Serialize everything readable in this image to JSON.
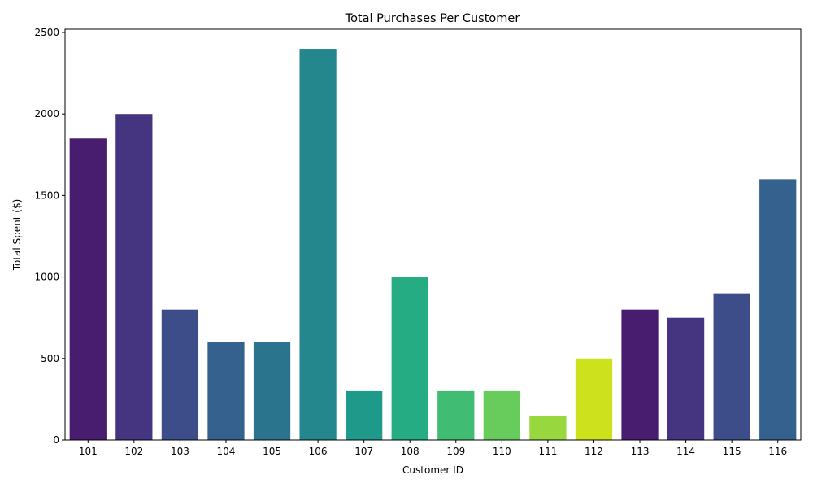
{
  "chart_data": {
    "type": "bar",
    "title": "Total Purchases Per Customer",
    "xlabel": "Customer ID",
    "ylabel": "Total Spent ($)",
    "categories": [
      "101",
      "102",
      "103",
      "104",
      "105",
      "106",
      "107",
      "108",
      "109",
      "110",
      "111",
      "112",
      "113",
      "114",
      "115",
      "116"
    ],
    "values": [
      1850,
      2000,
      800,
      600,
      600,
      2400,
      300,
      1000,
      300,
      300,
      150,
      500,
      800,
      750,
      900,
      1600
    ],
    "colors": [
      "#481c6e",
      "#453581",
      "#3d4d8a",
      "#34618d",
      "#2b748e",
      "#24878e",
      "#1f998a",
      "#25ac82",
      "#40bd72",
      "#67cc5c",
      "#98d83e",
      "#cde11d",
      "#481c6e",
      "#453581",
      "#3d4d8a",
      "#34618d"
    ],
    "ylim": [
      0,
      2520
    ],
    "yticks": [
      0,
      500,
      1000,
      1500,
      2000,
      2500
    ],
    "grid": false,
    "legend": "none"
  }
}
